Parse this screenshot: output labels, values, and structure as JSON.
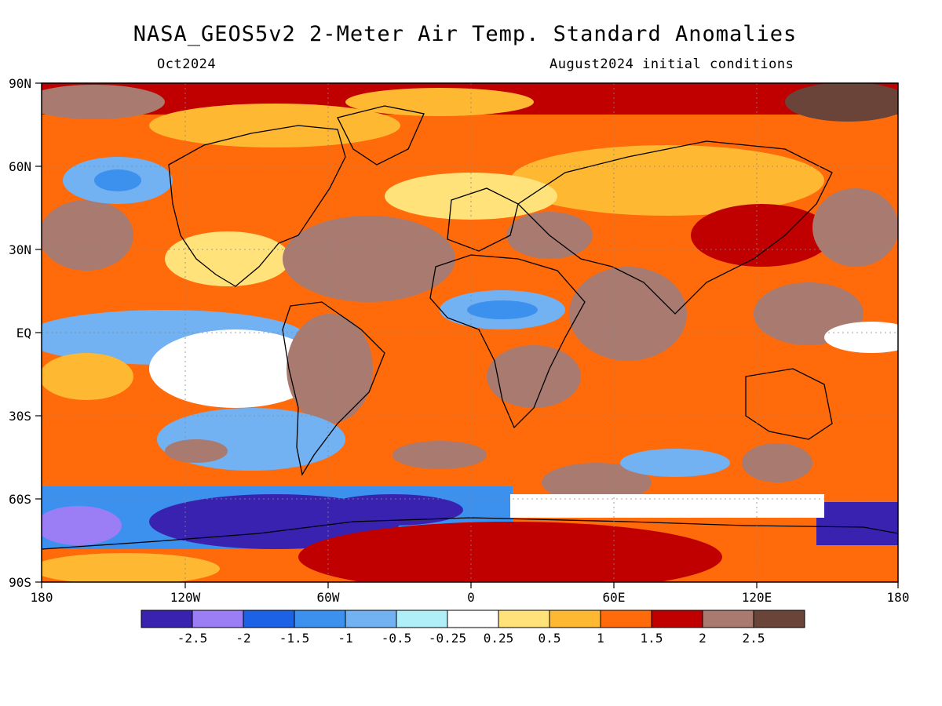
{
  "header": {
    "title": "NASA_GEOS5v2 2-Meter Air Temp. Standard Anomalies",
    "valid_month": "Oct2024",
    "init_conditions": "August2024 initial conditions"
  },
  "map": {
    "lat_labels": [
      "90N",
      "60N",
      "30N",
      "EQ",
      "30S",
      "60S",
      "90S"
    ],
    "lon_labels": [
      "180",
      "120W",
      "60W",
      "0",
      "60E",
      "120E",
      "180"
    ]
  },
  "colorbar": {
    "colors": [
      "#3a22b0",
      "#9b7ef5",
      "#1c62e6",
      "#3c90ee",
      "#72b2f3",
      "#b0eef8",
      "#ffffff",
      "#ffe27a",
      "#ffb832",
      "#ff6a0a",
      "#c00000",
      "#a87a70",
      "#6a4438"
    ],
    "labels": [
      "-2.5",
      "-2",
      "-1.5",
      "-1",
      "-0.5",
      "-0.25",
      "0.25",
      "0.5",
      "1",
      "1.5",
      "2",
      "2.5"
    ]
  }
}
